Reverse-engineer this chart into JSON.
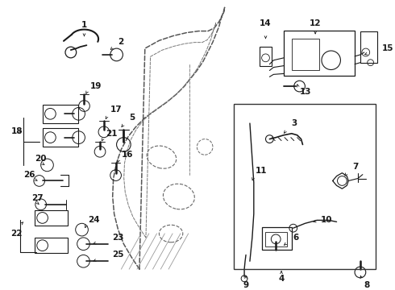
{
  "bg_color": "#ffffff",
  "fig_width": 4.9,
  "fig_height": 3.6,
  "dpi": 100,
  "gray": "#1a1a1a",
  "dash_color": "#444444",
  "line_color": "#111111"
}
